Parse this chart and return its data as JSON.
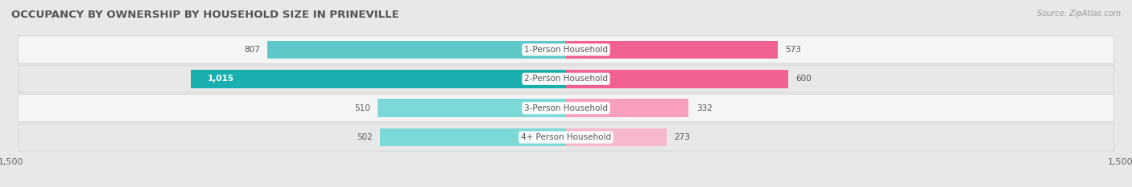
{
  "title": "OCCUPANCY BY OWNERSHIP BY HOUSEHOLD SIZE IN PRINEVILLE",
  "source": "Source: ZipAtlas.com",
  "categories": [
    "1-Person Household",
    "2-Person Household",
    "3-Person Household",
    "4+ Person Household"
  ],
  "owner_values": [
    807,
    1015,
    510,
    502
  ],
  "renter_values": [
    573,
    600,
    332,
    273
  ],
  "owner_colors": [
    "#5ec8c8",
    "#1aafaf",
    "#7dd8d8",
    "#7dd8d8"
  ],
  "renter_colors": [
    "#f06090",
    "#f06090",
    "#f8a0bc",
    "#f8b8cc"
  ],
  "axis_max": 1500,
  "bg_color": "#e8e8e8",
  "row_bg_colors": [
    "#f5f5f5",
    "#e8e8e8",
    "#f5f5f5",
    "#e8e8e8"
  ],
  "title_fontsize": 9.5,
  "label_fontsize": 7.5,
  "tick_fontsize": 8,
  "legend_fontsize": 8
}
